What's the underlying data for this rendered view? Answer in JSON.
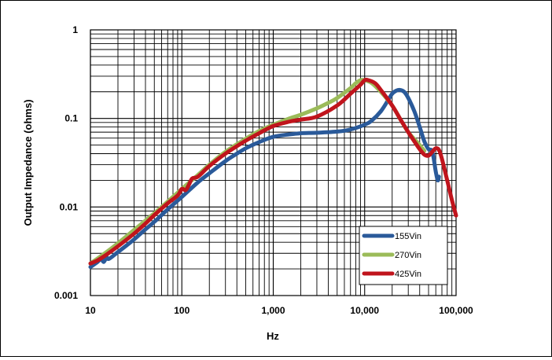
{
  "chart_data": {
    "type": "line",
    "title": "",
    "xlabel": "Hz",
    "ylabel": "Output Impedance (ohms)",
    "x_scale": "log",
    "y_scale": "log",
    "xlim": [
      10,
      100000
    ],
    "ylim": [
      0.001,
      1
    ],
    "grid": true,
    "legend_position": "bottom-right",
    "x_tick_labels": [
      "10",
      "100",
      "1,000",
      "10,000",
      "100,000"
    ],
    "y_tick_labels": [
      "0.001",
      "0.01",
      "0.1",
      "1"
    ],
    "x_ticks": [
      10,
      100,
      1000,
      10000,
      100000
    ],
    "y_ticks": [
      0.001,
      0.01,
      0.1,
      1
    ],
    "series": [
      {
        "name": "155Vin",
        "color": "#2a5a9a",
        "x": [
          10,
          12,
          13,
          14,
          15,
          16,
          20,
          25,
          30,
          40,
          50,
          70,
          100,
          150,
          200,
          300,
          400,
          500,
          700,
          1000,
          1500,
          2000,
          3000,
          5000,
          7000,
          10000,
          12000,
          15000,
          18000,
          20000,
          22000,
          24000,
          27000,
          30000,
          35000,
          40000,
          45000,
          50000,
          55000,
          60000,
          63000,
          65000
        ],
        "y": [
          0.0021,
          0.0024,
          0.0026,
          0.0024,
          0.0027,
          0.0026,
          0.0031,
          0.0037,
          0.0043,
          0.0056,
          0.0068,
          0.0094,
          0.013,
          0.019,
          0.024,
          0.033,
          0.04,
          0.046,
          0.054,
          0.062,
          0.066,
          0.068,
          0.069,
          0.071,
          0.075,
          0.085,
          0.095,
          0.12,
          0.16,
          0.19,
          0.205,
          0.21,
          0.2,
          0.17,
          0.12,
          0.08,
          0.055,
          0.045,
          0.042,
          0.025,
          0.02,
          0.022
        ]
      },
      {
        "name": "270Vin",
        "color": "#9bbb59",
        "x": [
          10,
          15,
          20,
          30,
          50,
          70,
          100,
          150,
          200,
          300,
          500,
          700,
          1000,
          1500,
          2000,
          3000,
          4000,
          5000,
          7000,
          8000,
          9000,
          10000,
          12000,
          15000,
          20000,
          25000,
          30000,
          40000,
          45000
        ],
        "y": [
          0.0023,
          0.0031,
          0.0039,
          0.0055,
          0.0085,
          0.0115,
          0.016,
          0.023,
          0.03,
          0.042,
          0.059,
          0.072,
          0.085,
          0.1,
          0.11,
          0.13,
          0.15,
          0.17,
          0.22,
          0.25,
          0.27,
          0.27,
          0.25,
          0.2,
          0.14,
          0.095,
          0.07,
          0.05,
          0.043
        ]
      },
      {
        "name": "425Vin",
        "color": "#c0141c",
        "x": [
          10,
          12,
          15,
          20,
          30,
          40,
          50,
          70,
          90,
          100,
          110,
          120,
          130,
          150,
          200,
          300,
          500,
          700,
          1000,
          1500,
          2000,
          3000,
          5000,
          7000,
          9000,
          10000,
          11000,
          13000,
          15000,
          20000,
          25000,
          30000,
          35000,
          40000,
          45000,
          50000,
          55000,
          60000,
          65000,
          70000,
          80000,
          90000,
          100000
        ],
        "y": [
          0.0023,
          0.0025,
          0.0029,
          0.0036,
          0.005,
          0.0065,
          0.0081,
          0.011,
          0.0135,
          0.016,
          0.0155,
          0.018,
          0.021,
          0.022,
          0.029,
          0.04,
          0.056,
          0.068,
          0.082,
          0.092,
          0.097,
          0.105,
          0.14,
          0.19,
          0.24,
          0.27,
          0.27,
          0.25,
          0.21,
          0.14,
          0.095,
          0.07,
          0.055,
          0.045,
          0.039,
          0.038,
          0.042,
          0.046,
          0.044,
          0.035,
          0.02,
          0.012,
          0.008
        ]
      }
    ]
  }
}
